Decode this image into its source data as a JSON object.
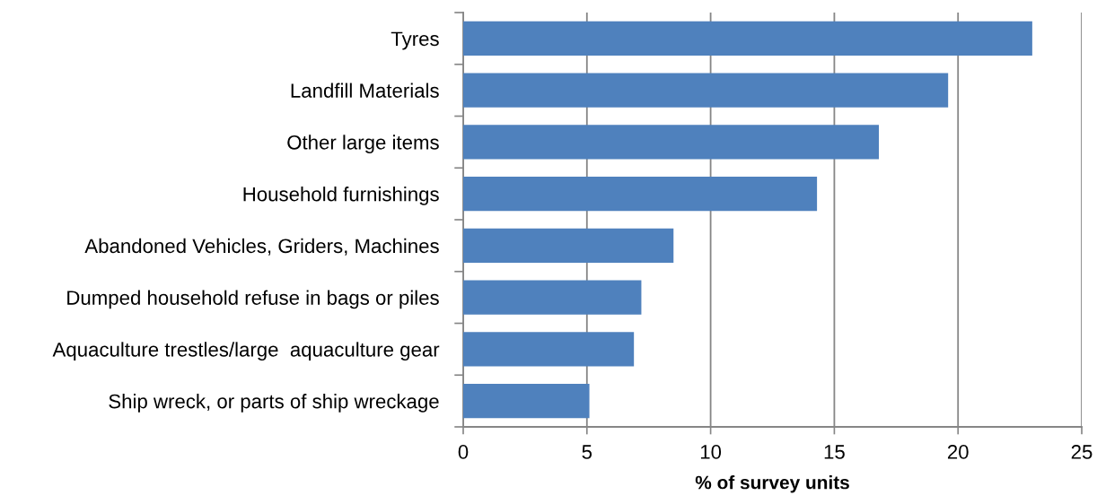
{
  "chart_data": {
    "type": "bar",
    "orientation": "horizontal",
    "categories": [
      "Tyres",
      "Landfill Materials",
      "Other large items",
      "Household furnishings",
      "Abandoned Vehicles, Griders, Machines",
      "Dumped household refuse in bags or piles",
      "Aquaculture trestles/large  aquaculture gear",
      "Ship wreck, or parts of ship wreckage"
    ],
    "values": [
      23.0,
      19.6,
      16.8,
      14.3,
      8.5,
      7.2,
      6.9,
      5.1
    ],
    "color": "#4f81bd",
    "xlabel": "% of survey units",
    "xlim": [
      0,
      25
    ],
    "xticks": [
      0,
      5,
      10,
      15,
      20,
      25
    ],
    "grid": "x"
  }
}
